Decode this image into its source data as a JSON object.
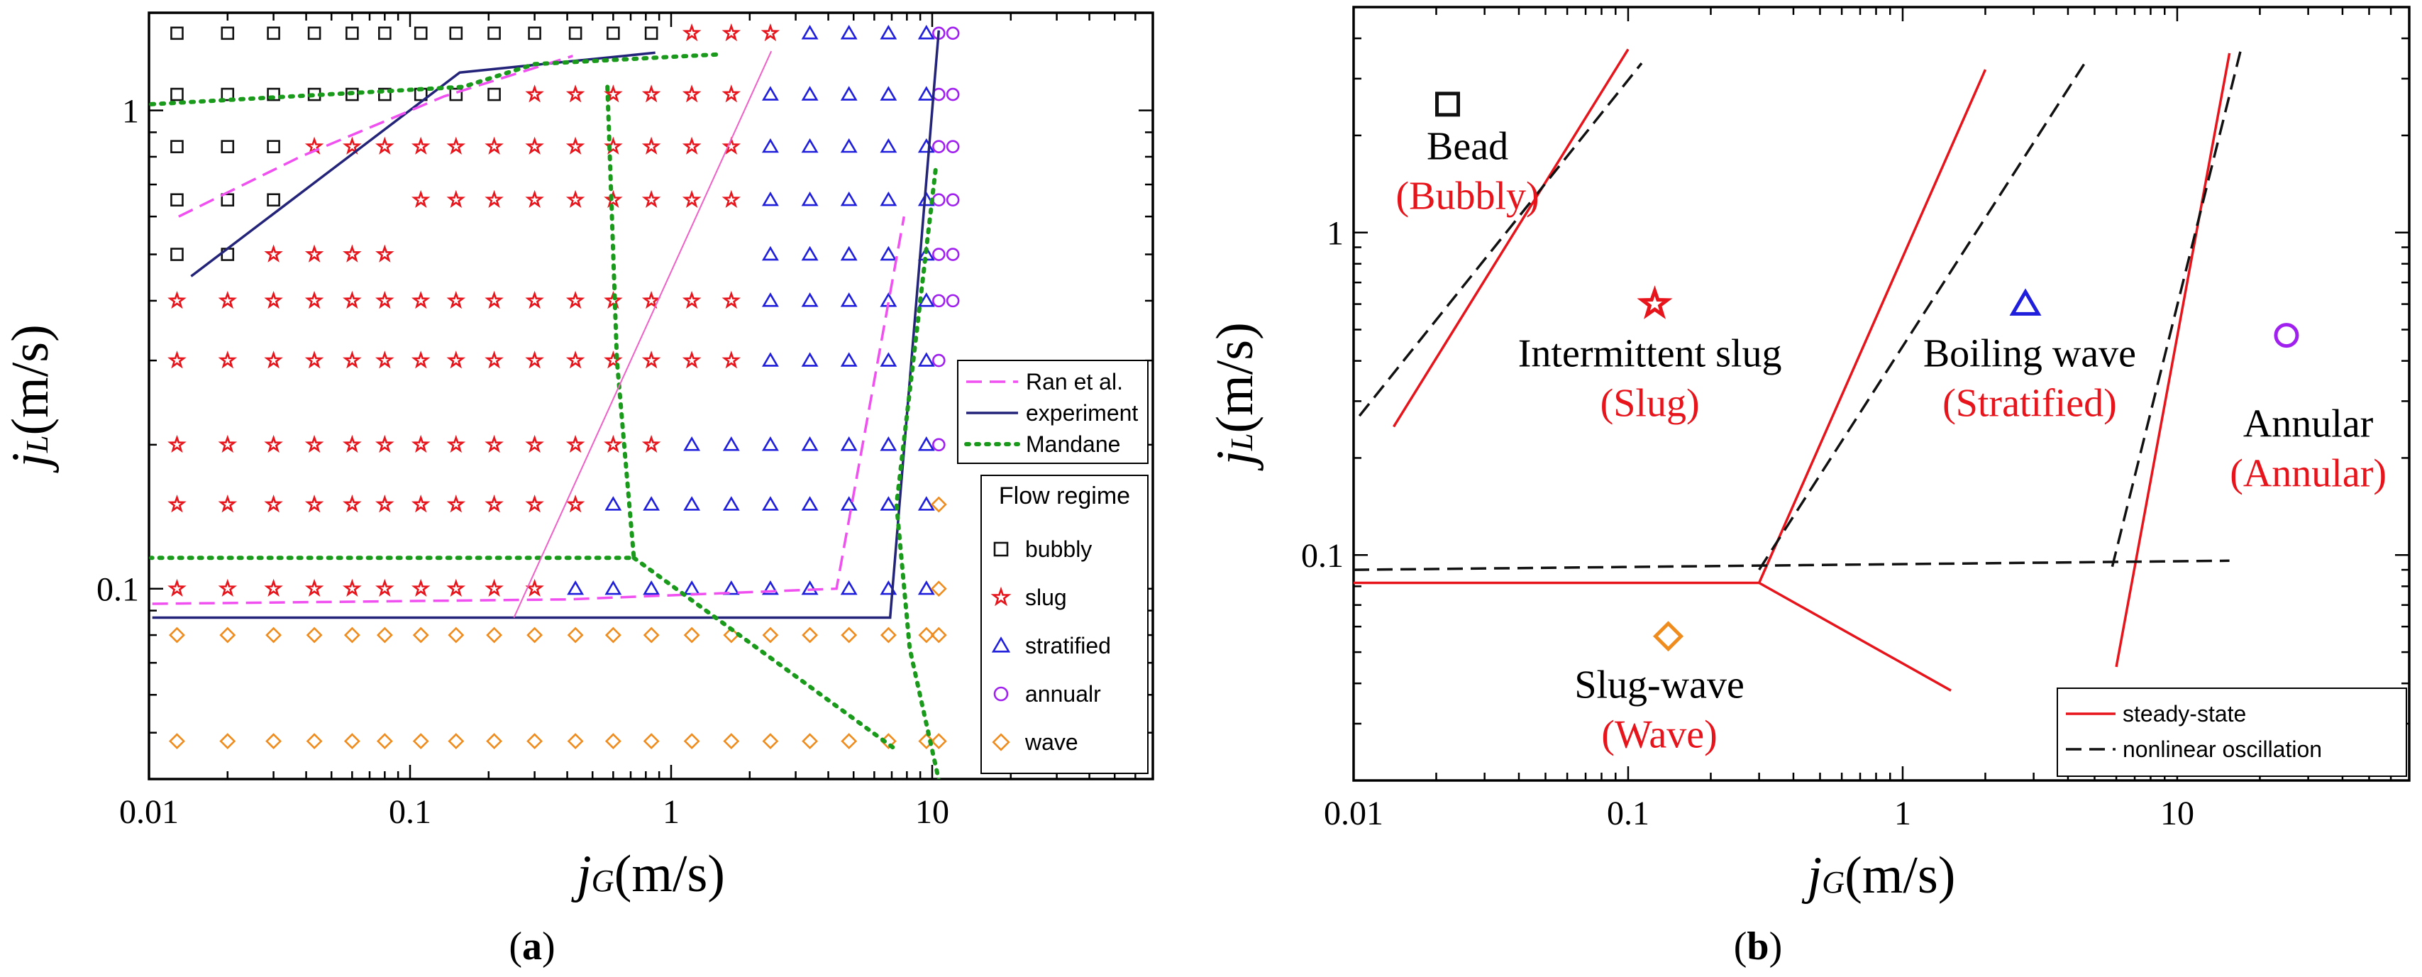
{
  "panel_labels": {
    "a": "a",
    "b": "b",
    "open": "(",
    "close": ")"
  },
  "colors": {
    "bubbly": "#111111",
    "slug": "#e8141b",
    "stratified": "#1e1edc",
    "annular": "#a020f0",
    "wave": "#f08c1e",
    "ran": "#f050f0",
    "experiment": "#23237a",
    "mandane": "#1a9a1a",
    "thin_pink": "#f060c8",
    "steady": "#e8141b",
    "oscillation": "#111111"
  },
  "chart_data": [
    {
      "id": "a",
      "type": "scatter",
      "xlabel": {
        "main": "j",
        "sub": "G",
        "unit": "(m/s)"
      },
      "ylabel": {
        "main": "j",
        "sub": "L",
        "unit": "(m/s)"
      },
      "xscale": "log",
      "yscale": "log",
      "xlim": [
        0.01,
        70
      ],
      "ylim": [
        0.04,
        1.6
      ],
      "xticks": [
        {
          "value": 0.01,
          "label": "0.01"
        },
        {
          "value": 0.1,
          "label": "0.1"
        },
        {
          "value": 1,
          "label": "1"
        },
        {
          "value": 10,
          "label": "10"
        }
      ],
      "yticks": [
        {
          "value": 0.1,
          "label": "0.1"
        },
        {
          "value": 1,
          "label": "1"
        }
      ],
      "legend_lines": {
        "position": "right-middle",
        "entries": [
          {
            "label": "Ran et al.",
            "key": "ran",
            "style": "dashed"
          },
          {
            "label": "experiment",
            "key": "experiment",
            "style": "solid"
          },
          {
            "label": "Mandane",
            "key": "mandane",
            "style": "dotted"
          }
        ]
      },
      "legend_markers": {
        "position": "right-bottom",
        "title": "Flow regime",
        "entries": [
          {
            "label": "bubbly",
            "key": "bubbly",
            "marker": "square"
          },
          {
            "label": "slug",
            "key": "slug",
            "marker": "star"
          },
          {
            "label": "stratified",
            "key": "stratified",
            "marker": "triangle"
          },
          {
            "label": "annualr",
            "key": "annular",
            "marker": "circle"
          },
          {
            "label": "wave",
            "key": "wave",
            "marker": "diamond"
          }
        ]
      },
      "x_grid": [
        0.0128,
        0.02,
        0.03,
        0.043,
        0.06,
        0.08,
        0.11,
        0.15,
        0.21,
        0.3,
        0.43,
        0.6,
        0.84,
        1.2,
        1.7,
        2.4,
        3.4,
        4.8,
        6.8,
        9.5,
        10.6,
        12
      ],
      "rows": [
        {
          "y": 1.45,
          "cells": [
            "bubbly",
            "bubbly",
            "bubbly",
            "bubbly",
            "bubbly",
            "bubbly",
            "bubbly",
            "bubbly",
            "bubbly",
            "bubbly",
            "bubbly",
            "bubbly",
            "bubbly",
            "slug",
            "slug",
            "slug",
            "stratified",
            "stratified",
            "stratified",
            "stratified",
            "annular",
            "annular"
          ]
        },
        {
          "y": 1.08,
          "cells": [
            "bubbly",
            "bubbly",
            "bubbly",
            "bubbly",
            "bubbly",
            "bubbly",
            "bubbly",
            "bubbly",
            "bubbly",
            "slug",
            "slug",
            "slug",
            "slug",
            "slug",
            "slug",
            "stratified",
            "stratified",
            "stratified",
            "stratified",
            "stratified",
            "annular",
            "annular"
          ]
        },
        {
          "y": 0.84,
          "cells": [
            "bubbly",
            "bubbly",
            "bubbly",
            "slug",
            "slug",
            "slug",
            "slug",
            "slug",
            "slug",
            "slug",
            "slug",
            "slug",
            "slug",
            "slug",
            "slug",
            "stratified",
            "stratified",
            "stratified",
            "stratified",
            "stratified",
            "annular",
            "annular"
          ]
        },
        {
          "y": 0.65,
          "cells": [
            "bubbly",
            "bubbly",
            "bubbly",
            "",
            "",
            "",
            "slug",
            "slug",
            "slug",
            "slug",
            "slug",
            "slug",
            "slug",
            "slug",
            "slug",
            "stratified",
            "stratified",
            "stratified",
            "stratified",
            "stratified",
            "annular",
            "annular"
          ]
        },
        {
          "y": 0.5,
          "cells": [
            "bubbly",
            "bubbly",
            "slug",
            "slug",
            "slug",
            "slug",
            "",
            "",
            "",
            "",
            "",
            "",
            "",
            "",
            "",
            "stratified",
            "stratified",
            "stratified",
            "stratified",
            "stratified",
            "annular",
            "annular"
          ]
        },
        {
          "y": 0.4,
          "cells": [
            "slug",
            "slug",
            "slug",
            "slug",
            "slug",
            "slug",
            "slug",
            "slug",
            "slug",
            "slug",
            "slug",
            "slug",
            "slug",
            "slug",
            "slug",
            "stratified",
            "stratified",
            "stratified",
            "stratified",
            "stratified",
            "annular",
            "annular"
          ]
        },
        {
          "y": 0.3,
          "cells": [
            "slug",
            "slug",
            "slug",
            "slug",
            "slug",
            "slug",
            "slug",
            "slug",
            "slug",
            "slug",
            "slug",
            "slug",
            "slug",
            "slug",
            "slug",
            "stratified",
            "stratified",
            "stratified",
            "stratified",
            "stratified",
            "annular",
            ""
          ]
        },
        {
          "y": 0.2,
          "cells": [
            "slug",
            "slug",
            "slug",
            "slug",
            "slug",
            "slug",
            "slug",
            "slug",
            "slug",
            "slug",
            "slug",
            "slug",
            "slug",
            "stratified",
            "stratified",
            "stratified",
            "stratified",
            "stratified",
            "stratified",
            "stratified",
            "annular",
            ""
          ]
        },
        {
          "y": 0.15,
          "cells": [
            "slug",
            "slug",
            "slug",
            "slug",
            "slug",
            "slug",
            "slug",
            "slug",
            "slug",
            "slug",
            "slug",
            "stratified",
            "stratified",
            "stratified",
            "stratified",
            "stratified",
            "stratified",
            "stratified",
            "stratified",
            "stratified",
            "wave",
            ""
          ]
        },
        {
          "y": 0.1,
          "cells": [
            "slug",
            "slug",
            "slug",
            "slug",
            "slug",
            "slug",
            "slug",
            "slug",
            "slug",
            "slug",
            "stratified",
            "stratified",
            "stratified",
            "stratified",
            "stratified",
            "stratified",
            "stratified",
            "stratified",
            "stratified",
            "stratified",
            "wave",
            ""
          ]
        },
        {
          "y": 0.08,
          "cells": [
            "wave",
            "wave",
            "wave",
            "wave",
            "wave",
            "wave",
            "wave",
            "wave",
            "wave",
            "wave",
            "wave",
            "wave",
            "wave",
            "wave",
            "wave",
            "wave",
            "wave",
            "wave",
            "wave",
            "wave",
            "wave",
            ""
          ]
        },
        {
          "y": 0.048,
          "cells": [
            "wave",
            "wave",
            "wave",
            "wave",
            "wave",
            "wave",
            "wave",
            "wave",
            "wave",
            "wave",
            "wave",
            "wave",
            "wave",
            "wave",
            "wave",
            "wave",
            "wave",
            "wave",
            "wave",
            "wave",
            "wave",
            ""
          ]
        }
      ],
      "lines": [
        {
          "name": "experiment-upper",
          "key": "experiment",
          "style": "solid",
          "points": [
            [
              0.0145,
              0.45
            ],
            [
              0.155,
              1.2
            ],
            [
              0.87,
              1.32
            ]
          ]
        },
        {
          "name": "experiment-lower",
          "key": "experiment",
          "style": "solid",
          "points": [
            [
              0.0103,
              0.087
            ],
            [
              6.9,
              0.087
            ],
            [
              10.6,
              1.47
            ]
          ]
        },
        {
          "name": "ran-upper",
          "key": "ran",
          "style": "dashed",
          "points": [
            [
              0.013,
              0.6
            ],
            [
              0.038,
              0.8
            ],
            [
              0.135,
              1.07
            ],
            [
              0.42,
              1.3
            ]
          ]
        },
        {
          "name": "ran-lower",
          "key": "ran",
          "style": "dashed",
          "points": [
            [
              0.0103,
              0.093
            ],
            [
              0.4,
              0.095
            ],
            [
              4.3,
              0.1
            ],
            [
              7.8,
              0.6
            ]
          ]
        },
        {
          "name": "mandane-top",
          "key": "mandane",
          "style": "dotted",
          "points": [
            [
              0.0102,
              1.03
            ],
            [
              0.16,
              1.12
            ],
            [
              0.3,
              1.25
            ],
            [
              1.55,
              1.31
            ]
          ]
        },
        {
          "name": "mandane-mid",
          "key": "mandane",
          "style": "dotted",
          "points": [
            [
              0.57,
              1.12
            ],
            [
              0.62,
              0.3
            ],
            [
              0.72,
              0.116
            ],
            [
              0.0102,
              0.116
            ]
          ]
        },
        {
          "name": "mandane-slant",
          "key": "mandane",
          "style": "dotted",
          "points": [
            [
              0.72,
              0.116
            ],
            [
              7.3,
              0.046
            ]
          ]
        },
        {
          "name": "mandane-right",
          "key": "mandane",
          "style": "dotted",
          "points": [
            [
              10.3,
              0.75
            ],
            [
              7.3,
              0.15
            ],
            [
              8.2,
              0.075
            ],
            [
              10.8,
              0.038
            ]
          ]
        },
        {
          "name": "pink-diagonal",
          "key": "thin_pink",
          "style": "thin",
          "points": [
            [
              0.25,
              0.087
            ],
            [
              2.42,
              1.33
            ]
          ]
        }
      ]
    },
    {
      "id": "b",
      "type": "scatter",
      "xlabel": {
        "main": "j",
        "sub": "G",
        "unit": "(m/s)"
      },
      "ylabel": {
        "main": "j",
        "sub": "L",
        "unit": "(m/s)"
      },
      "xscale": "log",
      "yscale": "log",
      "xlim": [
        0.01,
        70
      ],
      "ylim": [
        0.02,
        5
      ],
      "xticks": [
        {
          "value": 0.01,
          "label": "0.01"
        },
        {
          "value": 0.1,
          "label": "0.1"
        },
        {
          "value": 1,
          "label": "1"
        },
        {
          "value": 10,
          "label": "10"
        }
      ],
      "yticks": [
        {
          "value": 0.1,
          "label": "0.1"
        },
        {
          "value": 1,
          "label": "1"
        }
      ],
      "legend": {
        "position": "bottom-right",
        "entries": [
          {
            "label": "steady-state",
            "key": "steady",
            "style": "solid"
          },
          {
            "label": "nonlinear oscillation",
            "key": "oscillation",
            "style": "dashed"
          }
        ]
      },
      "markers": [
        {
          "name": "bead",
          "marker": "square",
          "key": "bubbly",
          "x": 0.022,
          "y": 2.5
        },
        {
          "name": "intermittent-slug",
          "marker": "star",
          "key": "slug",
          "x": 0.125,
          "y": 0.6
        },
        {
          "name": "boiling-wave",
          "marker": "triangle",
          "key": "stratified",
          "x": 2.8,
          "y": 0.6
        },
        {
          "name": "annular",
          "marker": "circle",
          "key": "annular",
          "x": 25,
          "y": 0.48
        },
        {
          "name": "slug-wave",
          "marker": "diamond",
          "key": "wave",
          "x": 0.14,
          "y": 0.056
        }
      ],
      "regions": [
        {
          "name": "bead",
          "label": "Bead",
          "sub": "(Bubbly)",
          "x": 0.026,
          "y": 1.45
        },
        {
          "name": "intermittent-slug",
          "label": "Intermittent slug",
          "sub": "(Slug)",
          "x": 0.12,
          "y": 0.33
        },
        {
          "name": "boiling-wave",
          "label": "Boiling wave",
          "sub": "(Stratified)",
          "x": 2.9,
          "y": 0.33
        },
        {
          "name": "annular",
          "label": "Annular",
          "sub": "(Annular)",
          "x": 30,
          "y": 0.2
        },
        {
          "name": "slug-wave",
          "label": "Slug-wave",
          "sub": "(Wave)",
          "x": 0.13,
          "y": 0.031
        }
      ],
      "lines": [
        {
          "name": "steady-bead",
          "key": "steady",
          "style": "solid",
          "points": [
            [
              0.014,
              0.25
            ],
            [
              0.1,
              3.7
            ]
          ]
        },
        {
          "name": "steady-horizontal",
          "key": "steady",
          "style": "solid",
          "points": [
            [
              0.01,
              0.082
            ],
            [
              0.3,
              0.082
            ]
          ]
        },
        {
          "name": "steady-lower",
          "key": "steady",
          "style": "solid",
          "points": [
            [
              0.3,
              0.082
            ],
            [
              1.5,
              0.038
            ]
          ]
        },
        {
          "name": "steady-mid",
          "key": "steady",
          "style": "solid",
          "points": [
            [
              0.3,
              0.082
            ],
            [
              2.0,
              3.2
            ]
          ]
        },
        {
          "name": "steady-right",
          "key": "steady",
          "style": "solid",
          "points": [
            [
              6.0,
              0.045
            ],
            [
              15.5,
              3.6
            ]
          ]
        },
        {
          "name": "osc-bead",
          "key": "oscillation",
          "style": "dashed",
          "points": [
            [
              0.0105,
              0.27
            ],
            [
              0.112,
              3.35
            ]
          ]
        },
        {
          "name": "osc-horizontal",
          "key": "oscillation",
          "style": "dashed",
          "points": [
            [
              0.01,
              0.09
            ],
            [
              15.5,
              0.096
            ]
          ]
        },
        {
          "name": "osc-mid",
          "key": "oscillation",
          "style": "dashed",
          "points": [
            [
              0.3,
              0.09
            ],
            [
              4.6,
              3.35
            ]
          ]
        },
        {
          "name": "osc-right",
          "key": "oscillation",
          "style": "dashed",
          "points": [
            [
              5.8,
              0.092
            ],
            [
              17.0,
              3.65
            ]
          ]
        }
      ]
    }
  ]
}
